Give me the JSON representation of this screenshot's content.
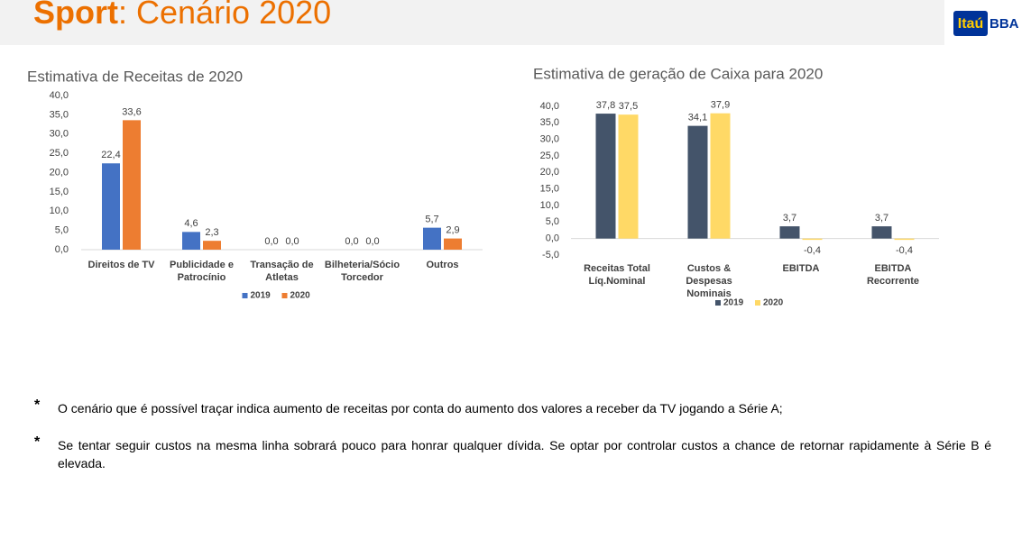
{
  "header": {
    "title_bold": "Sport",
    "title_rest": ": Cenário 2020",
    "logo_main": "Itaú",
    "logo_side": "BBA"
  },
  "chart_data": [
    {
      "type": "bar",
      "title": "Estimativa de Receitas de 2020",
      "categories": [
        "Direitos de TV",
        "Publicidade e Patrocínio",
        "Transação de Atletas",
        "Bilheteria/Sócio Torcedor",
        "Outros"
      ],
      "series": [
        {
          "name": "2019",
          "color": "#4472c4",
          "values": [
            22.4,
            4.6,
            0,
            0,
            5.7
          ],
          "value_labels": [
            "22,4",
            "4,6",
            "0,0",
            "0,0",
            "5,7"
          ]
        },
        {
          "name": "2020",
          "color": "#ed7d31",
          "values": [
            33.6,
            2.3,
            0,
            0,
            2.9
          ],
          "value_labels": [
            "33,6",
            "2,3",
            "0,0",
            "0,0",
            "2,9"
          ]
        }
      ],
      "ylim": [
        0,
        40
      ],
      "yticks": [
        {
          "value": 0,
          "label": "0,0"
        },
        {
          "value": 5,
          "label": "5,0"
        },
        {
          "value": 10,
          "label": "10,0"
        },
        {
          "value": 15,
          "label": "15,0"
        },
        {
          "value": 20,
          "label": "20,0"
        },
        {
          "value": 25,
          "label": "25,0"
        },
        {
          "value": 30,
          "label": "30,0"
        },
        {
          "value": 35,
          "label": "35,0"
        },
        {
          "value": 40,
          "label": "40,0"
        }
      ],
      "grid": false,
      "legend": "bottom"
    },
    {
      "type": "bar",
      "title": "Estimativa de geração de Caixa para 2020",
      "categories": [
        "Receitas Total Líq.Nominal",
        "Custos & Despesas Nominais",
        "EBITDA",
        "EBITDA Recorrente"
      ],
      "series": [
        {
          "name": "2019",
          "color": "#44546a",
          "values": [
            37.8,
            34.1,
            3.7,
            3.7
          ],
          "value_labels": [
            "37,8",
            "34,1",
            "3,7",
            "3,7"
          ]
        },
        {
          "name": "2020",
          "color": "#ffd966",
          "values": [
            37.5,
            37.9,
            -0.4,
            -0.4
          ],
          "value_labels": [
            "37,5",
            "37,9",
            "-0,4",
            "-0,4"
          ]
        }
      ],
      "ylim": [
        -5,
        40
      ],
      "yticks": [
        {
          "value": -5,
          "label": "-5,0"
        },
        {
          "value": 0,
          "label": "0,0"
        },
        {
          "value": 5,
          "label": "5,0"
        },
        {
          "value": 10,
          "label": "10,0"
        },
        {
          "value": 15,
          "label": "15,0"
        },
        {
          "value": 20,
          "label": "20,0"
        },
        {
          "value": 25,
          "label": "25,0"
        },
        {
          "value": 30,
          "label": "30,0"
        },
        {
          "value": 35,
          "label": "35,0"
        },
        {
          "value": 40,
          "label": "40,0"
        }
      ],
      "grid": false,
      "legend": "bottom"
    }
  ],
  "bullets": [
    {
      "marker": "*",
      "text": "O cenário que é possível traçar indica aumento de receitas por conta do aumento dos valores a receber da TV jogando a Série A;"
    },
    {
      "marker": "*",
      "text": "Se tentar seguir custos na mesma linha sobrará pouco para honrar qualquer dívida. Se optar por controlar custos a chance de retornar rapidamente à Série B é elevada."
    }
  ]
}
